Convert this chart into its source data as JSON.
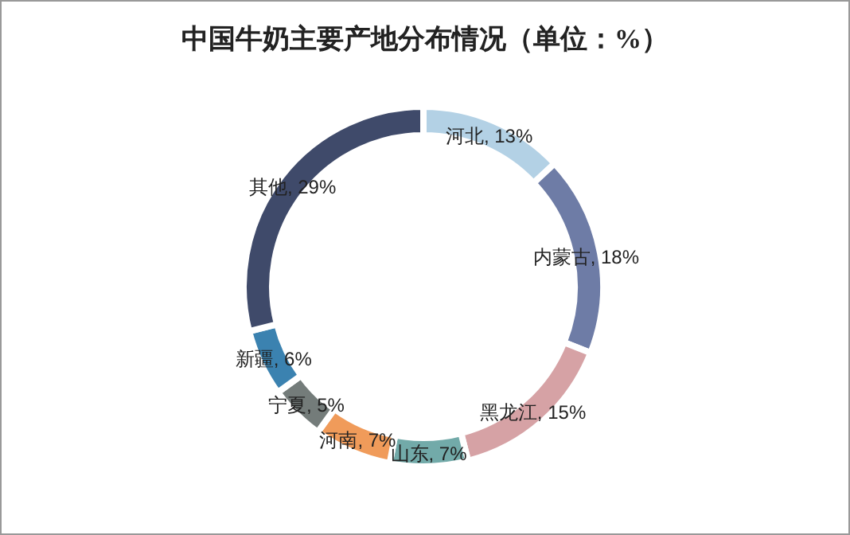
{
  "chart_data": {
    "type": "donut",
    "title": "中国牛奶主要产地分布情况（单位：%）",
    "categories": [
      "河北",
      "内蒙古",
      "黑龙江",
      "山东",
      "河南",
      "宁夏",
      "新疆",
      "其他"
    ],
    "values": [
      13,
      18,
      15,
      7,
      7,
      5,
      6,
      29
    ],
    "colors": [
      "#b3d1e5",
      "#6e7ca6",
      "#d6a2a5",
      "#72aaa9",
      "#f09b5a",
      "#747c7a",
      "#3b82b0",
      "#3f4a6a"
    ],
    "value_labels": [
      ", 13%",
      ", 18%",
      ", 15%",
      ", 7%",
      ", 7%",
      ", 5%",
      ", 6%",
      ", 29%"
    ]
  }
}
